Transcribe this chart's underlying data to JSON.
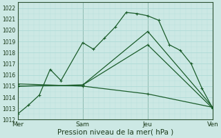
{
  "xlabel": "Pression niveau de la mer( hPa )",
  "ylim": [
    1012,
    1022.5
  ],
  "yticks": [
    1012,
    1013,
    1014,
    1015,
    1016,
    1017,
    1018,
    1019,
    1020,
    1021,
    1022
  ],
  "bg_color": "#cce8e4",
  "grid_major_color": "#b0d8d4",
  "grid_minor_color": "#c0e0dc",
  "line_color": "#1a5c2a",
  "xtick_labels": [
    "Mer",
    "Sam",
    "Jeu",
    "Ven"
  ],
  "xtick_pos": [
    0,
    36,
    72,
    108
  ],
  "xlim": [
    0,
    108
  ],
  "vline_pos": [
    0,
    36,
    72,
    108
  ],
  "series1_x": [
    0,
    6,
    12,
    18,
    24,
    36,
    42,
    48,
    54,
    60,
    66,
    72,
    78,
    84,
    90,
    96,
    102,
    108
  ],
  "series1_y": [
    1012.5,
    1013.3,
    1014.2,
    1016.5,
    1015.5,
    1018.9,
    1018.3,
    1019.3,
    1020.3,
    1021.6,
    1021.5,
    1021.3,
    1020.9,
    1018.7,
    1018.2,
    1017.0,
    1014.8,
    1013.0
  ],
  "series2_x": [
    0,
    36,
    72,
    108
  ],
  "series2_y": [
    1015.0,
    1015.1,
    1019.9,
    1013.1
  ],
  "series3_x": [
    0,
    36,
    72,
    108
  ],
  "series3_y": [
    1015.0,
    1015.1,
    1018.7,
    1013.0
  ],
  "series4_x": [
    0,
    36,
    72,
    108
  ],
  "series4_y": [
    1015.2,
    1015.0,
    1014.3,
    1013.1
  ]
}
